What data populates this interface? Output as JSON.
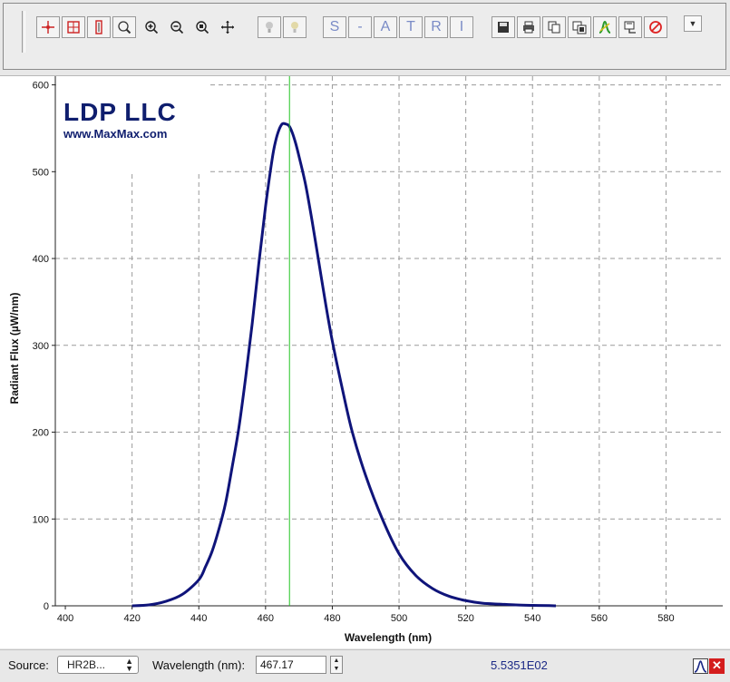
{
  "toolbar": {
    "zoom_group": [
      "crosshair-icon",
      "zoom-box-icon",
      "zoom-vertical-icon",
      "zoom-fit-icon"
    ],
    "zoom_plain": [
      "zoom-in-icon",
      "zoom-out-icon",
      "zoom-reset-icon",
      "pan-icon"
    ],
    "bulbs": [
      "bulb-icon",
      "bulb-dim-icon"
    ],
    "mode_letters": [
      "S",
      "-",
      "A",
      "T",
      "R",
      "I"
    ],
    "file_group": [
      "save-icon",
      "print-icon",
      "copy-icon",
      "copy-all-icon",
      "curve-icon",
      "export-icon",
      "delete-icon"
    ]
  },
  "logo": {
    "name": "LDP LLC",
    "url": "www.MaxMax.com"
  },
  "chart_data": {
    "type": "line",
    "xlabel": "Wavelength (nm)",
    "ylabel": "Radiant Flux (µW/nm)",
    "xlim": [
      397,
      597
    ],
    "ylim": [
      0,
      610
    ],
    "xticks": [
      400,
      420,
      440,
      460,
      480,
      500,
      520,
      540,
      560,
      580
    ],
    "yticks": [
      0,
      100,
      200,
      300,
      400,
      500,
      600
    ],
    "grid": true,
    "cursor_x": 467.17,
    "line_color": "#0f147a",
    "cursor_color": "#22c322",
    "series": [
      {
        "x": [
          420,
          425,
          430,
          435,
          440,
          442,
          444,
          446,
          448,
          450,
          452,
          454,
          456,
          458,
          460,
          462,
          463,
          464,
          465,
          466,
          467,
          468,
          469,
          470,
          472,
          474,
          476,
          478,
          480,
          483,
          486,
          490,
          495,
          500,
          505,
          510,
          515,
          520,
          525,
          530,
          535,
          540,
          545,
          547
        ],
        "values": [
          0,
          1,
          5,
          13,
          30,
          45,
          63,
          88,
          118,
          160,
          205,
          262,
          325,
          395,
          460,
          515,
          535,
          548,
          555,
          555,
          553,
          545,
          533,
          518,
          485,
          442,
          395,
          348,
          305,
          250,
          200,
          150,
          100,
          60,
          35,
          20,
          11,
          6,
          3,
          2,
          1,
          0.5,
          0.2,
          0
        ]
      }
    ]
  },
  "status": {
    "source_label": "Source:",
    "source_value": "HR2B...",
    "wavelength_label": "Wavelength (nm):",
    "wavelength_value": "467.17",
    "readout": "5.5351E02"
  }
}
